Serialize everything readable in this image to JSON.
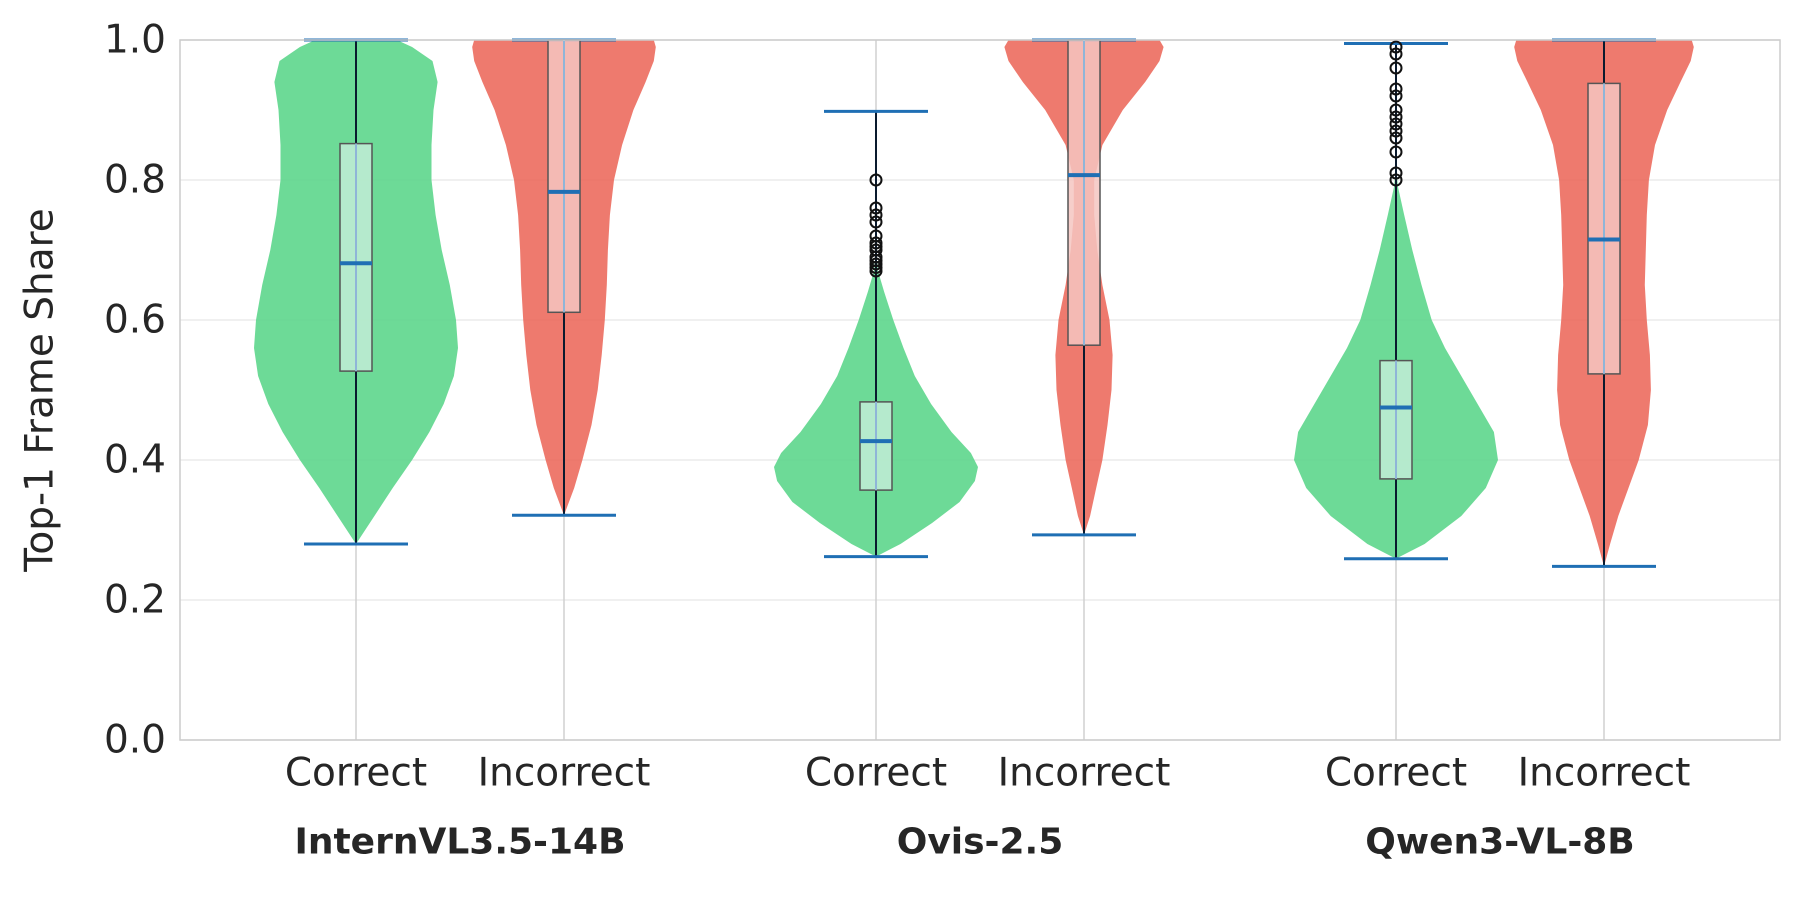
{
  "chart_data": {
    "type": "violin",
    "title": "",
    "ylabel": "Top-1 Frame Share",
    "ylim": [
      0.0,
      1.0
    ],
    "yticks": [
      "0.0",
      "0.2",
      "0.4",
      "0.6",
      "0.8",
      "1.0"
    ],
    "grid": true,
    "colors": {
      "Correct": "#5dd68c",
      "Incorrect": "#ec6c5e",
      "Correct_box": "#c2ecd6",
      "Incorrect_box": "#f5c6c1",
      "median": "#1f6fb4",
      "whisker": "#1f6fb4",
      "center_line": "#0a1a2e"
    },
    "groups": [
      {
        "name": "InternVL3.5-14B",
        "categories": [
          {
            "label": "Correct",
            "min": 0.28,
            "q1": 0.527,
            "median": 0.681,
            "q3": 0.852,
            "max": 1.0,
            "outliers": [],
            "density": [
              [
                0.28,
                0.0
              ],
              [
                0.32,
                0.18
              ],
              [
                0.36,
                0.36
              ],
              [
                0.4,
                0.55
              ],
              [
                0.44,
                0.72
              ],
              [
                0.48,
                0.86
              ],
              [
                0.52,
                0.96
              ],
              [
                0.56,
                1.0
              ],
              [
                0.6,
                0.98
              ],
              [
                0.65,
                0.92
              ],
              [
                0.7,
                0.84
              ],
              [
                0.75,
                0.78
              ],
              [
                0.8,
                0.74
              ],
              [
                0.85,
                0.74
              ],
              [
                0.9,
                0.76
              ],
              [
                0.94,
                0.8
              ],
              [
                0.97,
                0.75
              ],
              [
                0.99,
                0.55
              ],
              [
                1.0,
                0.4
              ]
            ]
          },
          {
            "label": "Incorrect",
            "min": 0.321,
            "q1": 0.611,
            "median": 0.783,
            "q3": 1.0,
            "max": 1.0,
            "outliers": [],
            "density": [
              [
                0.321,
                0.0
              ],
              [
                0.36,
                0.1
              ],
              [
                0.4,
                0.18
              ],
              [
                0.45,
                0.27
              ],
              [
                0.5,
                0.33
              ],
              [
                0.55,
                0.37
              ],
              [
                0.6,
                0.4
              ],
              [
                0.65,
                0.42
              ],
              [
                0.7,
                0.43
              ],
              [
                0.75,
                0.45
              ],
              [
                0.8,
                0.49
              ],
              [
                0.85,
                0.57
              ],
              [
                0.9,
                0.68
              ],
              [
                0.94,
                0.8
              ],
              [
                0.97,
                0.88
              ],
              [
                0.99,
                0.9
              ],
              [
                1.0,
                0.88
              ]
            ]
          }
        ]
      },
      {
        "name": "Ovis-2.5",
        "categories": [
          {
            "label": "Correct",
            "min": 0.262,
            "q1": 0.357,
            "median": 0.427,
            "q3": 0.483,
            "max": 0.898,
            "outliers": [
              0.8,
              0.76,
              0.75,
              0.74,
              0.72,
              0.71,
              0.705,
              0.7,
              0.69,
              0.685,
              0.68,
              0.675,
              0.67
            ],
            "density": [
              [
                0.262,
                0.0
              ],
              [
                0.28,
                0.24
              ],
              [
                0.31,
                0.55
              ],
              [
                0.34,
                0.82
              ],
              [
                0.37,
                0.97
              ],
              [
                0.39,
                1.0
              ],
              [
                0.41,
                0.93
              ],
              [
                0.44,
                0.74
              ],
              [
                0.48,
                0.54
              ],
              [
                0.52,
                0.38
              ],
              [
                0.56,
                0.27
              ],
              [
                0.6,
                0.17
              ],
              [
                0.64,
                0.08
              ],
              [
                0.67,
                0.02
              ],
              [
                0.7,
                0.0
              ]
            ]
          },
          {
            "label": "Incorrect",
            "min": 0.293,
            "q1": 0.564,
            "median": 0.807,
            "q3": 1.0,
            "max": 1.0,
            "outliers": [],
            "density": [
              [
                0.293,
                0.0
              ],
              [
                0.32,
                0.06
              ],
              [
                0.36,
                0.12
              ],
              [
                0.4,
                0.18
              ],
              [
                0.45,
                0.23
              ],
              [
                0.5,
                0.27
              ],
              [
                0.55,
                0.28
              ],
              [
                0.6,
                0.25
              ],
              [
                0.65,
                0.18
              ],
              [
                0.7,
                0.13
              ],
              [
                0.75,
                0.1
              ],
              [
                0.8,
                0.1
              ],
              [
                0.85,
                0.18
              ],
              [
                0.9,
                0.38
              ],
              [
                0.94,
                0.6
              ],
              [
                0.97,
                0.74
              ],
              [
                0.99,
                0.78
              ],
              [
                1.0,
                0.74
              ]
            ]
          }
        ]
      },
      {
        "name": "Qwen3-VL-8B",
        "categories": [
          {
            "label": "Correct",
            "min": 0.259,
            "q1": 0.373,
            "median": 0.475,
            "q3": 0.542,
            "max": 0.995,
            "outliers": [
              0.99,
              0.98,
              0.96,
              0.93,
              0.92,
              0.9,
              0.89,
              0.88,
              0.87,
              0.86,
              0.84,
              0.81,
              0.8
            ],
            "density": [
              [
                0.259,
                0.0
              ],
              [
                0.28,
                0.28
              ],
              [
                0.32,
                0.64
              ],
              [
                0.36,
                0.88
              ],
              [
                0.4,
                1.0
              ],
              [
                0.44,
                0.96
              ],
              [
                0.48,
                0.8
              ],
              [
                0.52,
                0.64
              ],
              [
                0.56,
                0.48
              ],
              [
                0.6,
                0.35
              ],
              [
                0.65,
                0.25
              ],
              [
                0.7,
                0.16
              ],
              [
                0.75,
                0.08
              ],
              [
                0.79,
                0.02
              ],
              [
                0.82,
                0.0
              ]
            ]
          },
          {
            "label": "Incorrect",
            "min": 0.248,
            "q1": 0.523,
            "median": 0.715,
            "q3": 0.938,
            "max": 1.0,
            "outliers": [],
            "density": [
              [
                0.248,
                0.0
              ],
              [
                0.28,
                0.06
              ],
              [
                0.32,
                0.14
              ],
              [
                0.36,
                0.24
              ],
              [
                0.4,
                0.34
              ],
              [
                0.45,
                0.43
              ],
              [
                0.5,
                0.46
              ],
              [
                0.55,
                0.45
              ],
              [
                0.6,
                0.42
              ],
              [
                0.65,
                0.4
              ],
              [
                0.7,
                0.41
              ],
              [
                0.75,
                0.42
              ],
              [
                0.8,
                0.44
              ],
              [
                0.85,
                0.5
              ],
              [
                0.9,
                0.62
              ],
              [
                0.94,
                0.75
              ],
              [
                0.97,
                0.85
              ],
              [
                0.99,
                0.88
              ],
              [
                1.0,
                0.86
              ]
            ]
          }
        ]
      }
    ]
  }
}
